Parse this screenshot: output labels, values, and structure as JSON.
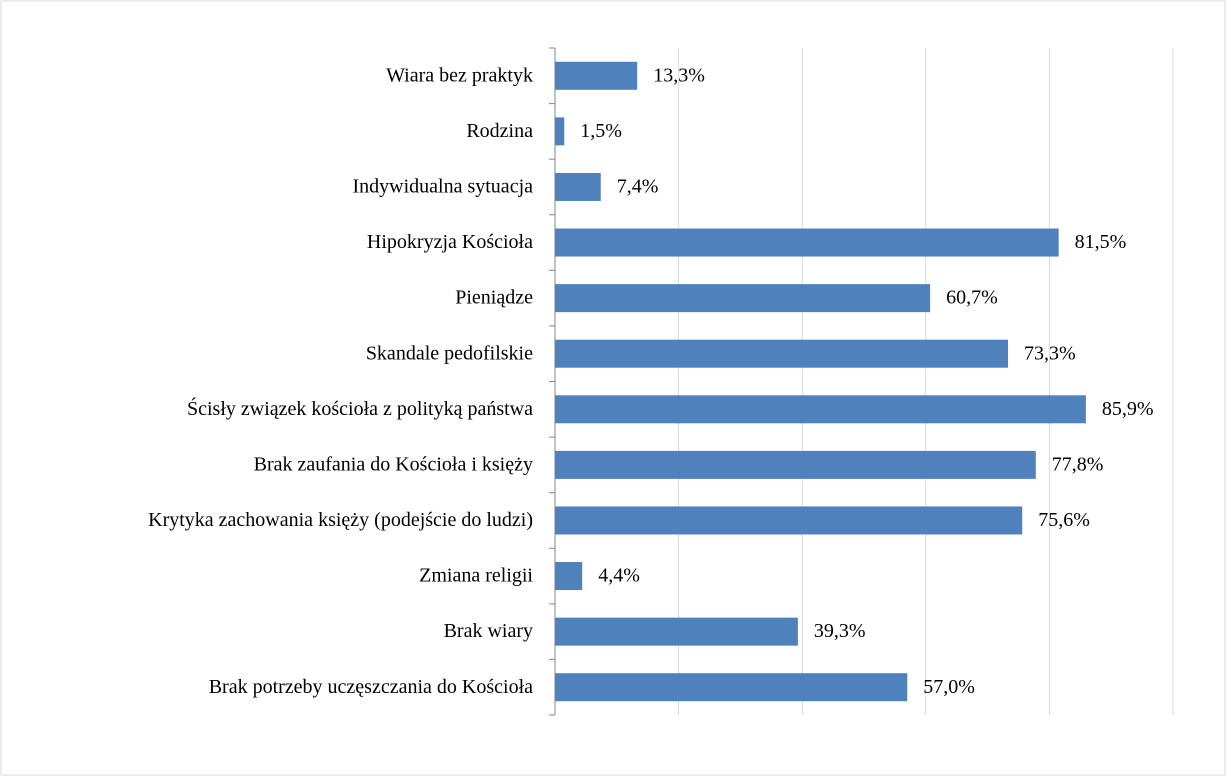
{
  "chart_data": {
    "type": "bar",
    "orientation": "horizontal",
    "categories": [
      "Wiara bez praktyk",
      "Rodzina",
      "Indywidualna sytuacja",
      "Hipokryzja Kościoła",
      "Pieniądze",
      "Skandale pedofilskie",
      "Ścisły związek kościoła z polityką państwa",
      "Brak zaufania do Kościoła i księży",
      "Krytyka zachowania księży (podejście do ludzi)",
      "Zmiana religii",
      "Brak wiary",
      "Brak potrzeby uczęszczania do Kościoła"
    ],
    "values": [
      13.3,
      1.5,
      7.4,
      81.5,
      60.7,
      73.3,
      85.9,
      77.8,
      75.6,
      4.4,
      39.3,
      57.0
    ],
    "value_labels": [
      "13,3%",
      "1,5%",
      "7,4%",
      "81,5%",
      "60,7%",
      "73,3%",
      "85,9%",
      "77,8%",
      "75,6%",
      "4,4%",
      "39,3%",
      "57,0%"
    ],
    "color": "#4f81bd",
    "xlim": [
      0,
      100
    ],
    "xticks": [
      0,
      20,
      40,
      60,
      80,
      100
    ],
    "grid": true
  }
}
